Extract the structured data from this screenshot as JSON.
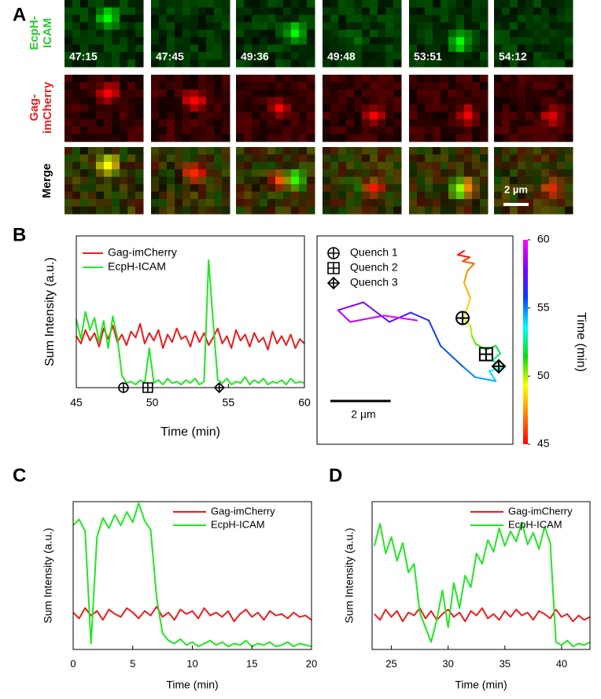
{
  "panel_labels": [
    "A",
    "B",
    "C",
    "D"
  ],
  "panel_a": {
    "row_labels": [
      [
        "EcpH-",
        "ICAM"
      ],
      [
        "Gag-",
        "imCherry"
      ],
      [
        "Merge"
      ]
    ],
    "row_colors": [
      "#2fc82f",
      "#e82020",
      "#000000"
    ],
    "timestamps": [
      "47:15",
      "47:45",
      "49:36",
      "49:48",
      "53:51",
      "54:12"
    ],
    "scale_bar": "2 µm"
  },
  "chart_data": [
    {
      "type": "line",
      "xlabel": "Time (min)",
      "ylabel": "Sum Intensity (a.u.)",
      "xlim": [
        45,
        60
      ],
      "ylim": [
        0,
        10
      ],
      "xticks": [
        45,
        50,
        55,
        60
      ],
      "legend": "upper left",
      "x": [
        45,
        45.3,
        45.6,
        45.9,
        46.2,
        46.5,
        46.8,
        47.1,
        47.4,
        47.7,
        48,
        48.3,
        48.6,
        48.9,
        49.2,
        49.5,
        49.8,
        50.1,
        50.4,
        50.7,
        51,
        51.3,
        51.6,
        51.9,
        52.2,
        52.5,
        52.8,
        53.1,
        53.4,
        53.7,
        54,
        54.3,
        54.6,
        54.9,
        55.2,
        55.5,
        55.8,
        56.1,
        56.4,
        56.7,
        57,
        57.3,
        57.6,
        57.9,
        58.2,
        58.5,
        58.8,
        59.1,
        59.4,
        59.7,
        60
      ],
      "series": [
        {
          "name": "Gag-imCherry",
          "color": "#ee1c1c",
          "values": [
            3.4,
            2.9,
            3.8,
            3.1,
            3.6,
            2.7,
            3.9,
            3.2,
            4.1,
            3.0,
            3.5,
            2.8,
            3.7,
            3.3,
            4.2,
            2.9,
            3.6,
            3.1,
            3.8,
            2.6,
            3.5,
            3.0,
            3.9,
            3.2,
            3.4,
            2.7,
            3.7,
            3.0,
            3.6,
            2.8,
            3.3,
            3.9,
            2.9,
            3.4,
            2.6,
            3.8,
            3.1,
            3.5,
            2.7,
            3.6,
            3.0,
            3.3,
            2.5,
            3.7,
            2.9,
            3.4,
            2.8,
            3.5,
            2.6,
            3.2,
            2.9
          ]
        },
        {
          "name": "EcpH-ICAM",
          "color": "#22e622",
          "values": [
            4.5,
            3.2,
            5.0,
            3.8,
            4.6,
            3.0,
            4.4,
            2.6,
            4.7,
            3.3,
            0.8,
            0.3,
            0.4,
            0.2,
            0.5,
            0.3,
            2.6,
            0.3,
            0.5,
            0.2,
            0.6,
            0.3,
            0.4,
            0.2,
            0.5,
            0.3,
            0.6,
            0.2,
            0.4,
            8.4,
            4.3,
            0.5,
            0.3,
            0.6,
            0.2,
            0.4,
            0.3,
            0.7,
            0.2,
            0.5,
            0.3,
            0.6,
            0.2,
            0.4,
            0.3,
            0.5,
            0.2,
            0.6,
            0.3,
            0.4,
            0.3
          ]
        }
      ],
      "markers": [
        {
          "symbol": "circle-plus",
          "x": 48.1,
          "y": 0
        },
        {
          "symbol": "square-plus",
          "x": 49.7,
          "y": 0
        },
        {
          "symbol": "diamond-plus",
          "x": 54.4,
          "y": 0
        }
      ]
    },
    {
      "type": "trajectory",
      "xlim": [
        0,
        6.5
      ],
      "ylim": [
        0,
        6.9
      ],
      "t": [
        45,
        45.5,
        46,
        46.5,
        47,
        47.5,
        48,
        48.5,
        49,
        49.5,
        50,
        50.5,
        51,
        51.5,
        52,
        52.5,
        53,
        53.5,
        54,
        54.5,
        55,
        55.5,
        56,
        56.5,
        57,
        57.5,
        58,
        58.5,
        59,
        59.5,
        60
      ],
      "x": [
        4.88,
        4.67,
        5.07,
        4.83,
        5.22,
        4.99,
        4.88,
        5.09,
        4.93,
        4.83,
        5.09,
        5.14,
        5.27,
        5.61,
        5.93,
        6.08,
        5.82,
        6.19,
        5.72,
        5.93,
        5.25,
        4.83,
        4.1,
        3.71,
        3.11,
        2.4,
        1.54,
        0.7,
        1.1,
        2.22,
        3.32
      ],
      "y": [
        6.4,
        6.27,
        6.19,
        6.06,
        5.98,
        5.74,
        5.35,
        4.83,
        4.36,
        4.18,
        3.92,
        3.58,
        3.32,
        3.13,
        3.26,
        3.0,
        2.79,
        2.53,
        2.43,
        2.09,
        2.22,
        2.58,
        3.26,
        4.1,
        4.36,
        4.05,
        4.7,
        4.44,
        4.05,
        4.26,
        4.1
      ],
      "colormap": [
        "#ff0000",
        "#ff8000",
        "#ffff00",
        "#00e000",
        "#00ffff",
        "#0040ff",
        "#8000ff",
        "#ff00ff"
      ],
      "clim": [
        45,
        60
      ],
      "cticks": [
        45,
        50,
        55,
        60
      ],
      "clabel": "Time (min)",
      "markers": [
        {
          "name": "Quench 1",
          "symbol": "circle-plus",
          "x": 4.83,
          "y": 4.18
        },
        {
          "name": "Quench 2",
          "symbol": "square-plus",
          "x": 5.61,
          "y": 2.98
        },
        {
          "name": "Quench 3",
          "symbol": "diamond-plus",
          "x": 6.03,
          "y": 2.58
        }
      ],
      "scale_bar": {
        "length": 2,
        "label": "2 µm"
      }
    },
    {
      "type": "line",
      "xlabel": "Time (min)",
      "ylabel": "Sum Intensity (a.u.)",
      "xlim": [
        0,
        20
      ],
      "ylim": [
        0,
        10
      ],
      "xticks": [
        0,
        5,
        10,
        15,
        20
      ],
      "legend": "upper right",
      "x": [
        0,
        0.5,
        1,
        1.5,
        2,
        2.5,
        3,
        3.5,
        4,
        4.5,
        5,
        5.5,
        6,
        6.5,
        7,
        7.5,
        8,
        8.5,
        9,
        9.5,
        10,
        10.5,
        11,
        11.5,
        12,
        12.5,
        13,
        13.5,
        14,
        14.5,
        15,
        15.5,
        16,
        16.5,
        17,
        17.5,
        18,
        18.5,
        19,
        19.5,
        20
      ],
      "series": [
        {
          "name": "Gag-imCherry",
          "color": "#ee1c1c",
          "values": [
            2.5,
            2.1,
            2.8,
            2.3,
            2.6,
            2.0,
            2.7,
            2.4,
            2.2,
            2.8,
            2.5,
            2.1,
            2.6,
            2.3,
            2.9,
            2.2,
            2.5,
            2.0,
            2.7,
            2.4,
            2.6,
            2.1,
            2.8,
            2.3,
            2.5,
            2.2,
            2.6,
            1.9,
            2.4,
            2.7,
            2.2,
            2.5,
            2.0,
            2.6,
            2.3,
            2.4,
            2.1,
            2.5,
            2.2,
            2.3,
            2.0
          ]
        },
        {
          "name": "EcpH-ICAM",
          "color": "#22e622",
          "values": [
            8.4,
            8.8,
            8.0,
            0.4,
            7.6,
            8.9,
            8.2,
            9.1,
            8.4,
            9.3,
            8.6,
            9.9,
            8.7,
            8.1,
            3.5,
            1.1,
            0.6,
            0.4,
            0.7,
            0.3,
            0.5,
            0.2,
            0.4,
            0.6,
            0.3,
            0.5,
            0.2,
            0.4,
            0.3,
            0.6,
            0.2,
            0.4,
            0.3,
            0.5,
            0.2,
            0.3,
            0.5,
            0.2,
            0.4,
            0.3,
            0.2
          ]
        }
      ]
    },
    {
      "type": "line",
      "xlabel": "Time (min)",
      "ylabel": "Sum Intensity (a.u.)",
      "xlim": [
        23.3,
        42.5
      ],
      "ylim": [
        0,
        10
      ],
      "xticks": [
        25,
        30,
        35,
        40
      ],
      "legend": "upper right",
      "x": [
        23.5,
        24,
        24.5,
        25,
        25.5,
        26,
        26.5,
        27,
        27.5,
        28,
        28.5,
        29,
        29.5,
        30,
        30.5,
        31,
        31.5,
        32,
        32.5,
        33,
        33.5,
        34,
        34.5,
        35,
        35.5,
        36,
        36.5,
        37,
        37.5,
        38,
        38.5,
        39,
        39.5,
        40,
        40.5,
        41,
        41.5,
        42,
        42.5
      ],
      "series": [
        {
          "name": "Gag-imCherry",
          "color": "#ee1c1c",
          "values": [
            2.4,
            2.0,
            2.7,
            2.2,
            2.6,
            1.9,
            2.5,
            2.3,
            2.8,
            2.1,
            2.6,
            2.0,
            2.4,
            2.7,
            2.2,
            2.5,
            1.9,
            2.6,
            2.3,
            2.8,
            2.1,
            2.4,
            2.0,
            2.6,
            2.2,
            2.7,
            2.3,
            2.5,
            2.0,
            2.6,
            2.4,
            2.1,
            2.7,
            2.2,
            2.4,
            1.9,
            2.3,
            2.0,
            2.2
          ]
        },
        {
          "name": "EcpH-ICAM",
          "color": "#22e622",
          "values": [
            7.0,
            8.5,
            6.5,
            7.6,
            6.0,
            7.2,
            5.2,
            5.8,
            2.5,
            1.5,
            0.5,
            2.0,
            4.0,
            1.5,
            4.5,
            2.8,
            5.0,
            4.2,
            6.5,
            5.8,
            7.4,
            6.6,
            8.2,
            7.0,
            8.0,
            7.3,
            8.6,
            7.1,
            7.9,
            6.8,
            8.3,
            7.2,
            0.5,
            0.3,
            0.6,
            0.2,
            0.4,
            0.3,
            0.5
          ]
        }
      ]
    }
  ]
}
